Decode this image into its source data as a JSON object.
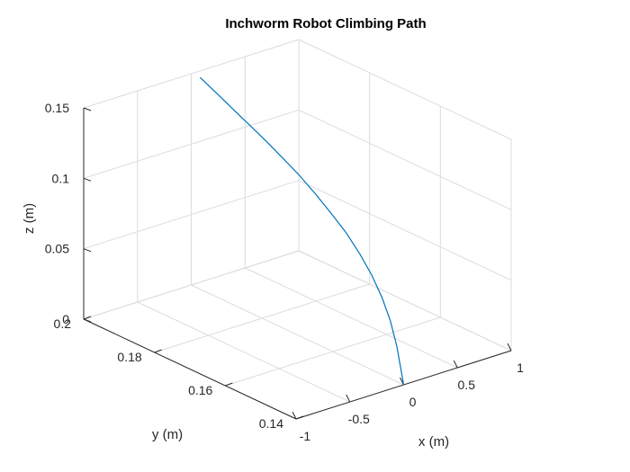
{
  "chart_data": {
    "type": "line",
    "projection": "3d",
    "title": "Inchworm Robot Climbing Path",
    "xlabel": "x (m)",
    "ylabel": "y (m)",
    "zlabel": "z (m)",
    "xlim": [
      -1,
      1
    ],
    "ylim": [
      0.14,
      0.2
    ],
    "zlim": [
      0,
      0.15
    ],
    "xticks": [
      "-1",
      "-0.5",
      "0",
      "0.5",
      "1"
    ],
    "yticks": [
      "0.14",
      "0.16",
      "0.18",
      "0.2"
    ],
    "zticks": [
      "0",
      "0.05",
      "0.1",
      "0.15"
    ],
    "grid": true,
    "colors": {
      "series": "#0072BD",
      "grid": "#dcdcdc",
      "axis": "#262626"
    },
    "series": [
      {
        "x": [
          0,
          0,
          0,
          0,
          0,
          0,
          0,
          0,
          0,
          0,
          0,
          0,
          0,
          0,
          0,
          0
        ],
        "y": [
          0.14,
          0.1419,
          0.1438,
          0.1461,
          0.149,
          0.1523,
          0.1563,
          0.1607,
          0.165,
          0.1697,
          0.1743,
          0.1787,
          0.1836,
          0.1886,
          0.1933,
          0.1975
        ],
        "z": [
          0,
          0.0249,
          0.0412,
          0.0547,
          0.0672,
          0.0781,
          0.0889,
          0.098,
          0.1062,
          0.1143,
          0.1208,
          0.1269,
          0.1331,
          0.1393,
          0.1452,
          0.1503
        ]
      }
    ]
  }
}
